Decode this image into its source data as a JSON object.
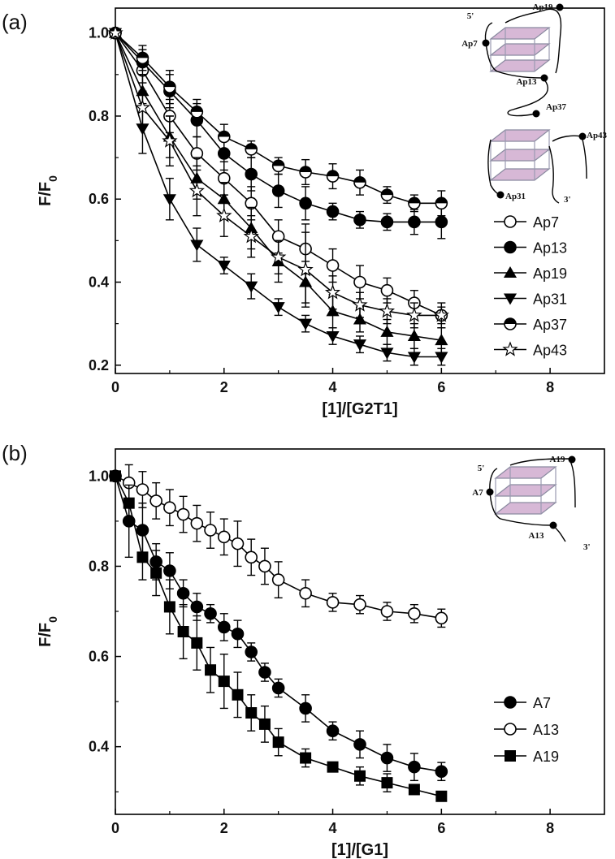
{
  "chart_data": [
    {
      "type": "line",
      "panel_label": "(a)",
      "xlabel": "[1]/[G2T1]",
      "ylabel": "F/F",
      "ylabel_sub": "0",
      "xlim": [
        0,
        9
      ],
      "ylim": [
        0.18,
        1.06
      ],
      "xticks": [
        0,
        2,
        4,
        6,
        8
      ],
      "yticks": [
        0.2,
        0.4,
        0.6,
        0.8,
        1.0
      ],
      "legend_position": "right",
      "series": [
        {
          "name": "Ap7",
          "marker": "open-circle",
          "x": [
            0,
            0.5,
            1,
            1.5,
            2,
            2.5,
            3,
            3.5,
            4,
            4.5,
            5,
            5.5,
            6
          ],
          "y": [
            1.0,
            0.91,
            0.8,
            0.71,
            0.65,
            0.59,
            0.51,
            0.48,
            0.44,
            0.4,
            0.38,
            0.35,
            0.32
          ],
          "err": [
            0.01,
            0.03,
            0.04,
            0.04,
            0.04,
            0.04,
            0.04,
            0.06,
            0.04,
            0.04,
            0.03,
            0.03,
            0.03
          ]
        },
        {
          "name": "Ap13",
          "marker": "filled-circle",
          "x": [
            0,
            0.5,
            1,
            1.5,
            2,
            2.5,
            3,
            3.5,
            4,
            4.5,
            5,
            5.5,
            6
          ],
          "y": [
            1.0,
            0.93,
            0.86,
            0.79,
            0.71,
            0.66,
            0.62,
            0.59,
            0.57,
            0.55,
            0.545,
            0.545,
            0.545
          ],
          "err": [
            0.01,
            0.03,
            0.04,
            0.04,
            0.04,
            0.04,
            0.04,
            0.04,
            0.02,
            0.02,
            0.02,
            0.03,
            0.04
          ]
        },
        {
          "name": "Ap19",
          "marker": "filled-triangle-up",
          "x": [
            0,
            0.5,
            1,
            1.5,
            2,
            2.5,
            3,
            3.5,
            4,
            4.5,
            5,
            5.5,
            6
          ],
          "y": [
            1.0,
            0.86,
            0.75,
            0.65,
            0.6,
            0.53,
            0.45,
            0.4,
            0.33,
            0.31,
            0.28,
            0.27,
            0.26
          ],
          "err": [
            0.01,
            0.04,
            0.05,
            0.05,
            0.04,
            0.05,
            0.05,
            0.05,
            0.04,
            0.03,
            0.03,
            0.03,
            0.03
          ]
        },
        {
          "name": "Ap31",
          "marker": "filled-triangle-down",
          "x": [
            0,
            0.5,
            1,
            1.5,
            2,
            2.5,
            3,
            3.5,
            4,
            4.5,
            5,
            5.5,
            6
          ],
          "y": [
            1.0,
            0.77,
            0.6,
            0.49,
            0.44,
            0.39,
            0.34,
            0.3,
            0.27,
            0.25,
            0.23,
            0.22,
            0.22
          ],
          "err": [
            0.01,
            0.06,
            0.05,
            0.04,
            0.02,
            0.03,
            0.02,
            0.02,
            0.02,
            0.02,
            0.02,
            0.02,
            0.02
          ]
        },
        {
          "name": "Ap37",
          "marker": "half-circle",
          "x": [
            0,
            0.5,
            1,
            1.5,
            2,
            2.5,
            3,
            3.5,
            4,
            4.5,
            5,
            5.5,
            6
          ],
          "y": [
            1.0,
            0.94,
            0.87,
            0.81,
            0.75,
            0.72,
            0.68,
            0.665,
            0.655,
            0.64,
            0.61,
            0.59,
            0.59
          ],
          "err": [
            0.01,
            0.03,
            0.04,
            0.03,
            0.03,
            0.02,
            0.02,
            0.03,
            0.03,
            0.03,
            0.02,
            0.02,
            0.03
          ]
        },
        {
          "name": "Ap43",
          "marker": "open-star",
          "x": [
            0,
            0.5,
            1,
            1.5,
            2,
            2.5,
            3,
            3.5,
            4,
            4.5,
            5,
            5.5,
            6
          ],
          "y": [
            1.0,
            0.82,
            0.74,
            0.62,
            0.56,
            0.51,
            0.46,
            0.43,
            0.375,
            0.345,
            0.33,
            0.32,
            0.32
          ],
          "err": [
            0.01,
            0.04,
            0.06,
            0.06,
            0.05,
            0.05,
            0.04,
            0.09,
            0.04,
            0.03,
            0.03,
            0.03,
            0.02
          ]
        }
      ],
      "structure_labels": [
        "Ap19",
        "5'",
        "Ap7",
        "Ap13",
        "Ap37",
        "Ap43",
        "Ap31",
        "3'"
      ]
    },
    {
      "type": "line",
      "panel_label": "(b)",
      "xlabel": "[1]/[G1]",
      "ylabel": "F/F",
      "ylabel_sub": "0",
      "xlim": [
        0,
        9
      ],
      "ylim": [
        0.25,
        1.06
      ],
      "xticks": [
        0,
        2,
        4,
        6,
        8
      ],
      "yticks": [
        0.4,
        0.6,
        0.8,
        1.0
      ],
      "legend_position": "bottom-right",
      "series": [
        {
          "name": "A7",
          "marker": "filled-circle",
          "x": [
            0,
            0.25,
            0.5,
            0.75,
            1.0,
            1.25,
            1.5,
            1.75,
            2.0,
            2.25,
            2.5,
            2.75,
            3.0,
            3.5,
            4.0,
            4.5,
            5.0,
            5.5,
            6.0
          ],
          "y": [
            1.0,
            0.9,
            0.88,
            0.81,
            0.79,
            0.74,
            0.71,
            0.695,
            0.665,
            0.65,
            0.61,
            0.565,
            0.53,
            0.485,
            0.435,
            0.405,
            0.375,
            0.355,
            0.345
          ],
          "err": [
            0.01,
            0.08,
            0.06,
            0.04,
            0.04,
            0.03,
            0.03,
            0.02,
            0.03,
            0.03,
            0.02,
            0.02,
            0.02,
            0.03,
            0.02,
            0.03,
            0.03,
            0.03,
            0.02
          ]
        },
        {
          "name": "A13",
          "marker": "open-circle",
          "x": [
            0,
            0.25,
            0.5,
            0.75,
            1.0,
            1.25,
            1.5,
            1.75,
            2.0,
            2.25,
            2.5,
            2.75,
            3.0,
            3.5,
            4.0,
            4.5,
            5.0,
            5.5,
            6.0
          ],
          "y": [
            1.0,
            0.985,
            0.97,
            0.945,
            0.93,
            0.915,
            0.895,
            0.88,
            0.865,
            0.85,
            0.82,
            0.8,
            0.77,
            0.74,
            0.72,
            0.715,
            0.7,
            0.695,
            0.685
          ],
          "err": [
            0.01,
            0.04,
            0.04,
            0.04,
            0.04,
            0.04,
            0.04,
            0.04,
            0.04,
            0.05,
            0.04,
            0.04,
            0.04,
            0.03,
            0.02,
            0.02,
            0.02,
            0.02,
            0.02
          ]
        },
        {
          "name": "A19",
          "marker": "filled-square",
          "x": [
            0,
            0.25,
            0.5,
            0.75,
            1.0,
            1.25,
            1.5,
            1.75,
            2.0,
            2.25,
            2.5,
            2.75,
            3.0,
            3.5,
            4.0,
            4.5,
            5.0,
            5.5,
            6.0
          ],
          "y": [
            1.0,
            0.94,
            0.82,
            0.785,
            0.71,
            0.655,
            0.63,
            0.57,
            0.545,
            0.515,
            0.475,
            0.45,
            0.41,
            0.375,
            0.355,
            0.335,
            0.32,
            0.305,
            0.29
          ],
          "err": [
            0.01,
            0.04,
            0.05,
            0.05,
            0.06,
            0.06,
            0.06,
            0.05,
            0.06,
            0.05,
            0.04,
            0.04,
            0.03,
            0.02,
            0.01,
            0.02,
            0.02,
            0.01,
            0.01
          ]
        }
      ],
      "structure_labels": [
        "A19",
        "5'",
        "A7",
        "A13",
        "3'"
      ]
    }
  ]
}
